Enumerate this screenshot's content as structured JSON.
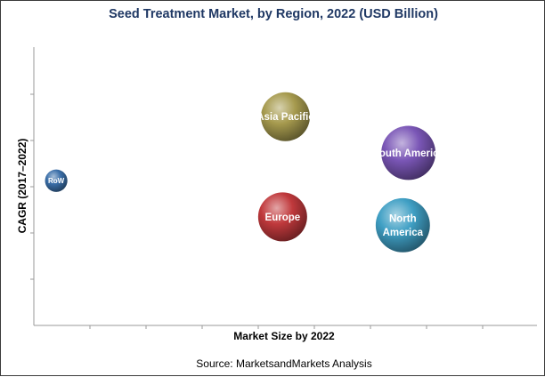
{
  "chart_data": {
    "type": "bubble",
    "title": "Seed Treatment Market, by Region, 2022 (USD Billion)",
    "xlabel": "Market Size by 2022",
    "ylabel": "CAGR (2017–2022)",
    "axis_ticks_labeled": false,
    "grid": false,
    "legend": "none",
    "series": [
      {
        "name": "RoW",
        "x": 0.4,
        "y": 5.2,
        "size": 0.4,
        "color": "#3a6ea8"
      },
      {
        "name": "Asia Pacific",
        "x": 4.5,
        "y": 7.5,
        "size": 3.0,
        "color": "#a69a4e"
      },
      {
        "name": "Europe",
        "x": 4.45,
        "y": 3.9,
        "size": 3.0,
        "color": "#c0393c"
      },
      {
        "name": "South America",
        "x": 6.7,
        "y": 6.2,
        "size": 3.8,
        "color": "#7a56b6"
      },
      {
        "name": "North America",
        "x": 6.6,
        "y": 3.6,
        "size": 3.8,
        "color": "#3f9fc4"
      }
    ],
    "xlim": [
      0,
      9
    ],
    "ylim": [
      0,
      10
    ]
  },
  "source": "Source: MarketsandMarkets Analysis"
}
